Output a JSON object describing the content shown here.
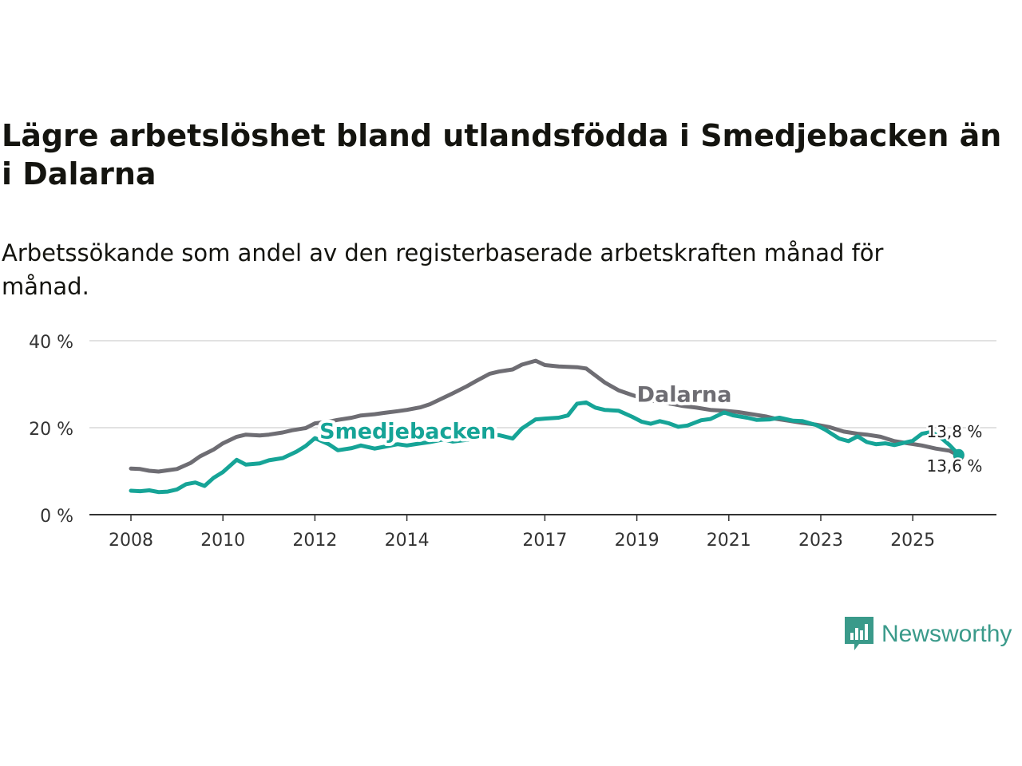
{
  "header": {
    "title": "Lägre arbetslöshet bland utlandsfödda i Smedjebacken än i Dalarna",
    "subtitle": "Arbetssökande som andel av den registerbaserade arbetskraften månad för månad."
  },
  "brand": {
    "name": "Newsworthy",
    "color": "#3a9a8a"
  },
  "chart_data": {
    "type": "line",
    "title": "Lägre arbetslöshet bland utlandsfödda i Smedjebacken än i Dalarna",
    "xlabel": "",
    "ylabel": "",
    "xlim": [
      2008.0,
      2027.0
    ],
    "ylim": [
      0,
      40
    ],
    "grid": true,
    "y_ticks": [
      {
        "value": 0,
        "label": "0 %"
      },
      {
        "value": 20,
        "label": "20 %"
      },
      {
        "value": 40,
        "label": "40 %"
      }
    ],
    "x_ticks": [
      {
        "value": 2008,
        "label": "2008"
      },
      {
        "value": 2010,
        "label": "2010"
      },
      {
        "value": 2012,
        "label": "2012"
      },
      {
        "value": 2014,
        "label": "2014"
      },
      {
        "value": 2017,
        "label": "2017"
      },
      {
        "value": 2019,
        "label": "2019"
      },
      {
        "value": 2021,
        "label": "2021"
      },
      {
        "value": 2023,
        "label": "2023"
      },
      {
        "value": 2025,
        "label": "2025"
      }
    ],
    "series": [
      {
        "name": "Dalarna",
        "color": "#6e6d73",
        "x": [
          2008.0,
          2008.2,
          2008.4,
          2008.6,
          2008.8,
          2009.0,
          2009.3,
          2009.5,
          2009.8,
          2010.0,
          2010.3,
          2010.5,
          2010.8,
          2011.0,
          2011.3,
          2011.5,
          2011.8,
          2012.0,
          2012.3,
          2012.5,
          2012.8,
          2013.0,
          2013.3,
          2013.5,
          2013.8,
          2014.0,
          2014.3,
          2014.5,
          2014.8,
          2015.0,
          2015.3,
          2015.5,
          2015.8,
          2016.0,
          2016.3,
          2016.5,
          2016.8,
          2016.9,
          2017.0,
          2017.3,
          2017.5,
          2017.7,
          2017.9,
          2018.0,
          2018.3,
          2018.6,
          2018.9,
          2019.2,
          2019.5,
          2019.8,
          2020.0,
          2020.3,
          2020.6,
          2020.9,
          2021.2,
          2021.5,
          2021.8,
          2022.0,
          2022.3,
          2022.6,
          2022.9,
          2023.2,
          2023.5,
          2023.8,
          2024.0,
          2024.3,
          2024.6,
          2024.9,
          2025.2,
          2025.5,
          2025.8,
          2026.0
        ],
        "values": [
          10.6,
          10.5,
          10.1,
          9.9,
          10.2,
          10.5,
          11.9,
          13.4,
          15.0,
          16.4,
          17.9,
          18.4,
          18.2,
          18.4,
          18.9,
          19.4,
          19.9,
          21.0,
          21.4,
          21.8,
          22.3,
          22.8,
          23.1,
          23.4,
          23.8,
          24.1,
          24.7,
          25.4,
          26.9,
          27.9,
          29.5,
          30.7,
          32.4,
          32.9,
          33.4,
          34.5,
          35.4,
          34.9,
          34.4,
          34.1,
          34.0,
          33.9,
          33.6,
          32.8,
          30.4,
          28.6,
          27.5,
          26.5,
          25.9,
          25.4,
          25.0,
          24.6,
          24.1,
          23.9,
          23.6,
          23.1,
          22.6,
          22.1,
          21.6,
          21.1,
          20.7,
          20.1,
          19.1,
          18.6,
          18.4,
          17.9,
          16.9,
          16.4,
          15.9,
          15.2,
          14.7,
          13.6
        ]
      },
      {
        "name": "Smedjebacken",
        "color": "#16a497",
        "x": [
          2008.0,
          2008.2,
          2008.4,
          2008.6,
          2008.8,
          2009.0,
          2009.2,
          2009.4,
          2009.6,
          2009.8,
          2010.0,
          2010.3,
          2010.5,
          2010.8,
          2011.0,
          2011.3,
          2011.6,
          2011.8,
          2012.0,
          2012.3,
          2012.5,
          2012.8,
          2013.0,
          2013.3,
          2013.5,
          2013.8,
          2014.0,
          2014.3,
          2014.5,
          2014.8,
          2015.0,
          2015.3,
          2015.5,
          2015.8,
          2016.0,
          2016.3,
          2016.5,
          2016.8,
          2017.0,
          2017.3,
          2017.5,
          2017.7,
          2017.9,
          2018.1,
          2018.3,
          2018.6,
          2018.9,
          2019.1,
          2019.3,
          2019.5,
          2019.7,
          2019.9,
          2020.1,
          2020.4,
          2020.6,
          2020.9,
          2021.1,
          2021.4,
          2021.6,
          2021.9,
          2022.1,
          2022.4,
          2022.6,
          2022.9,
          2023.1,
          2023.4,
          2023.6,
          2023.8,
          2024.0,
          2024.2,
          2024.4,
          2024.6,
          2024.8,
          2025.0,
          2025.2,
          2025.4,
          2025.6,
          2025.8,
          2026.0
        ],
        "values": [
          5.5,
          5.4,
          5.6,
          5.2,
          5.3,
          5.8,
          7.0,
          7.4,
          6.6,
          8.5,
          9.8,
          12.6,
          11.5,
          11.8,
          12.5,
          13.0,
          14.5,
          15.8,
          17.6,
          16.2,
          14.8,
          15.3,
          15.9,
          15.2,
          15.6,
          16.2,
          15.9,
          16.4,
          16.7,
          17.3,
          16.8,
          17.2,
          17.7,
          18.1,
          18.3,
          17.5,
          19.8,
          21.9,
          22.1,
          22.3,
          22.8,
          25.5,
          25.8,
          24.6,
          24.1,
          23.9,
          22.5,
          21.4,
          20.9,
          21.5,
          21.0,
          20.2,
          20.5,
          21.7,
          22.0,
          23.5,
          22.8,
          22.3,
          21.8,
          21.9,
          22.3,
          21.6,
          21.5,
          20.6,
          19.5,
          17.5,
          16.9,
          18.0,
          16.7,
          16.2,
          16.4,
          16.0,
          16.5,
          17.0,
          18.6,
          19.0,
          17.8,
          16.0,
          13.8
        ]
      }
    ],
    "annotations": [
      {
        "series": "Dalarna",
        "label": "Dalarna"
      },
      {
        "series": "Smedjebacken",
        "label": "Smedjebacken"
      },
      {
        "series": "Smedjebacken",
        "end_label": "13,8 %"
      },
      {
        "series": "Dalarna",
        "end_label": "13,6 %"
      }
    ]
  }
}
